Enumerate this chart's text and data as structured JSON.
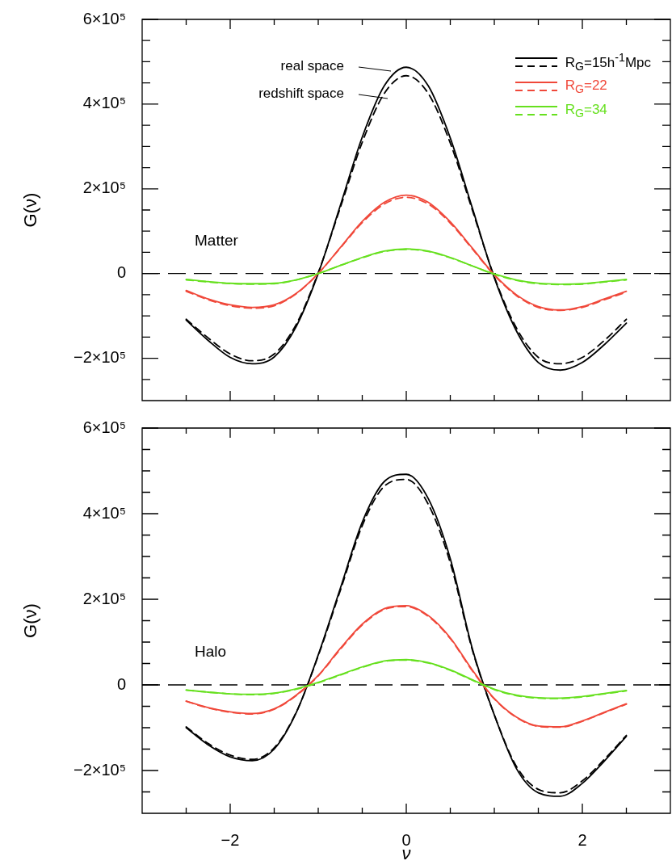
{
  "chart_data": [
    {
      "type": "line",
      "ylabel": "G(ν)",
      "legend": "top right",
      "tick_labels": "y",
      "x": [
        -2.5,
        -2.25,
        -2,
        -1.75,
        -1.5,
        -1.25,
        -1,
        -0.75,
        -0.5,
        -0.25,
        0,
        0.25,
        0.5,
        0.75,
        1,
        1.25,
        1.5,
        1.75,
        2,
        2.25,
        2.5
      ],
      "xlim": [
        -3,
        3
      ],
      "xticks": [
        {
          "value": -2.5,
          "label": null
        },
        {
          "value": -2,
          "label": null
        },
        {
          "value": -1.5,
          "label": null
        },
        {
          "value": -1,
          "label": null
        },
        {
          "value": -0.5,
          "label": null
        },
        {
          "value": 0,
          "label": null
        },
        {
          "value": 0.5,
          "label": null
        },
        {
          "value": 1,
          "label": null
        },
        {
          "value": 1.5,
          "label": null
        },
        {
          "value": 2,
          "label": null
        },
        {
          "value": 2.5,
          "label": null
        }
      ],
      "ylim": [
        -300000,
        600000
      ],
      "yticks": [
        {
          "value": -250000,
          "label": null
        },
        {
          "value": -200000,
          "label": "−2×10⁵"
        },
        {
          "value": -150000,
          "label": null
        },
        {
          "value": -100000,
          "label": null
        },
        {
          "value": -50000,
          "label": null
        },
        0,
        {
          "value": 50000,
          "label": null
        },
        {
          "value": 100000,
          "label": null
        },
        {
          "value": 150000,
          "label": null
        },
        {
          "value": 200000,
          "label": "2×10⁵"
        },
        {
          "value": 250000,
          "label": null
        },
        {
          "value": 300000,
          "label": null
        },
        {
          "value": 350000,
          "label": null
        },
        {
          "value": 400000,
          "label": "4×10⁵"
        },
        {
          "value": 450000,
          "label": null
        },
        {
          "value": 500000,
          "label": null
        },
        {
          "value": 550000,
          "label": null
        },
        {
          "value": 600000,
          "label": "6×10⁵"
        }
      ],
      "ref_lines": [
        {
          "axis": "y",
          "value": 0,
          "color": "#000000",
          "line_style": "dashed"
        }
      ],
      "annotations": [
        "real space",
        "redshift space",
        "Matter"
      ],
      "series": [
        {
          "name": "R$_{G}$=15h$^{-1}$Mpc",
          "color": "#000000",
          "line_style": "solid",
          "values": [
            -110000,
            -158000,
            -198000,
            -213000,
            -197000,
            -125000,
            0,
            160000,
            322000,
            443000,
            487000,
            443000,
            320000,
            155000,
            -10000,
            -135000,
            -210000,
            -228000,
            -210000,
            -168000,
            -117000
          ]
        },
        {
          "color": "#000000",
          "line_style": "dashed",
          "values": [
            -108000,
            -152000,
            -190000,
            -206000,
            -190000,
            -120000,
            2000,
            155000,
            310000,
            425000,
            467000,
            425000,
            308000,
            150000,
            -8000,
            -128000,
            -198000,
            -213000,
            -198000,
            -158000,
            -108000
          ]
        },
        {
          "name": "R$_{G}$=22",
          "color": "#f0483a",
          "line_style": "solid",
          "values": [
            -40000,
            -60000,
            -74000,
            -80000,
            -74000,
            -47000,
            0,
            61000,
            123000,
            168000,
            185000,
            168000,
            122000,
            60000,
            -3000,
            -50000,
            -78000,
            -86000,
            -78000,
            -60000,
            -42000
          ]
        },
        {
          "color": "#f0483a",
          "line_style": "dashed",
          "values": [
            -42000,
            -62000,
            -76000,
            -82000,
            -76000,
            -48000,
            0,
            60000,
            120000,
            164000,
            180000,
            164000,
            119000,
            58000,
            -4000,
            -52000,
            -80000,
            -87000,
            -80000,
            -62000,
            -44000
          ]
        },
        {
          "name": "R$_{G}$=34",
          "color": "#66e01e",
          "line_style": "solid",
          "values": [
            -14000,
            -19000,
            -23000,
            -24000,
            -23000,
            -15000,
            0,
            19000,
            38000,
            53000,
            58000,
            53000,
            38000,
            18000,
            -1000,
            -15000,
            -23000,
            -25000,
            -24000,
            -19000,
            -14000
          ]
        },
        {
          "color": "#66e01e",
          "line_style": "dashed",
          "values": [
            -15000,
            -20000,
            -24000,
            -25000,
            -24000,
            -15000,
            0,
            19000,
            37000,
            52000,
            57000,
            52000,
            37000,
            18000,
            -2000,
            -16000,
            -24000,
            -26000,
            -25000,
            -20000,
            -15000
          ]
        }
      ]
    },
    {
      "type": "line",
      "ylabel": "G(ν)",
      "xlabel": "ν",
      "x": [
        -2.5,
        -2.25,
        -2,
        -1.75,
        -1.5,
        -1.25,
        -1,
        -0.75,
        -0.5,
        -0.25,
        0,
        0.25,
        0.5,
        0.75,
        1,
        1.25,
        1.5,
        1.75,
        2,
        2.25,
        2.5
      ],
      "xlim": [
        -3,
        3
      ],
      "xticks": [
        {
          "value": -2.5,
          "label": null
        },
        {
          "value": -2,
          "label": "−2"
        },
        {
          "value": -1.5,
          "label": null
        },
        {
          "value": -1,
          "label": null
        },
        {
          "value": -0.5,
          "label": null
        },
        0,
        {
          "value": 0.5,
          "label": null
        },
        {
          "value": 1,
          "label": null
        },
        {
          "value": 1.5,
          "label": null
        },
        2,
        {
          "value": 2.5,
          "label": null
        }
      ],
      "ylim": [
        -300000,
        600000
      ],
      "yticks": [
        {
          "value": -250000,
          "label": null
        },
        {
          "value": -200000,
          "label": "−2×10⁵"
        },
        {
          "value": -150000,
          "label": null
        },
        {
          "value": -100000,
          "label": null
        },
        {
          "value": -50000,
          "label": null
        },
        0,
        {
          "value": 50000,
          "label": null
        },
        {
          "value": 100000,
          "label": null
        },
        {
          "value": 150000,
          "label": null
        },
        {
          "value": 200000,
          "label": "2×10⁵"
        },
        {
          "value": 250000,
          "label": null
        },
        {
          "value": 300000,
          "label": null
        },
        {
          "value": 350000,
          "label": null
        },
        {
          "value": 400000,
          "label": "4×10⁵"
        },
        {
          "value": 450000,
          "label": null
        },
        {
          "value": 500000,
          "label": null
        },
        {
          "value": 550000,
          "label": null
        },
        {
          "value": 600000,
          "label": "6×10⁵"
        }
      ],
      "ref_lines": [
        {
          "axis": "y",
          "value": 0,
          "color": "#000000",
          "line_style": "dashed"
        }
      ],
      "annotations": [
        "Halo"
      ],
      "series": [
        {
          "color": "#000000",
          "line_style": "solid",
          "values": [
            -100000,
            -140000,
            -168000,
            -177000,
            -150000,
            -65000,
            70000,
            225000,
            380000,
            475000,
            492000,
            435000,
            295000,
            85000,
            -70000,
            -195000,
            -252000,
            -260000,
            -230000,
            -178000,
            -120000
          ]
        },
        {
          "color": "#000000",
          "line_style": "dashed",
          "values": [
            -98000,
            -137000,
            -164000,
            -174000,
            -147000,
            -64000,
            68000,
            220000,
            372000,
            464000,
            480000,
            422000,
            285000,
            82000,
            -70000,
            -190000,
            -244000,
            -252000,
            -224000,
            -174000,
            -118000
          ]
        },
        {
          "color": "#f0483a",
          "line_style": "solid",
          "values": [
            -38000,
            -53000,
            -63000,
            -67000,
            -56000,
            -24000,
            22000,
            85000,
            142000,
            178000,
            185000,
            162000,
            110000,
            35000,
            -32000,
            -75000,
            -96000,
            -98000,
            -84000,
            -64000,
            -44000
          ]
        },
        {
          "color": "#f0483a",
          "line_style": "dashed",
          "values": [
            -38000,
            -54000,
            -64000,
            -68000,
            -57000,
            -25000,
            21000,
            83000,
            140000,
            176000,
            183000,
            160000,
            108000,
            33000,
            -33000,
            -76000,
            -97000,
            -99000,
            -85000,
            -65000,
            -45000
          ]
        },
        {
          "color": "#66e01e",
          "line_style": "solid",
          "values": [
            -12000,
            -17000,
            -21000,
            -22000,
            -19000,
            -9000,
            6000,
            24000,
            42000,
            56000,
            59000,
            52000,
            35000,
            12000,
            -10000,
            -24000,
            -30000,
            -31000,
            -27000,
            -20000,
            -13000
          ]
        },
        {
          "color": "#66e01e",
          "line_style": "dashed",
          "values": [
            -12000,
            -17000,
            -21000,
            -23000,
            -20000,
            -10000,
            5000,
            23000,
            41000,
            55000,
            58000,
            51000,
            34000,
            11000,
            -11000,
            -25000,
            -31000,
            -32000,
            -28000,
            -21000,
            -14000
          ]
        }
      ]
    }
  ]
}
